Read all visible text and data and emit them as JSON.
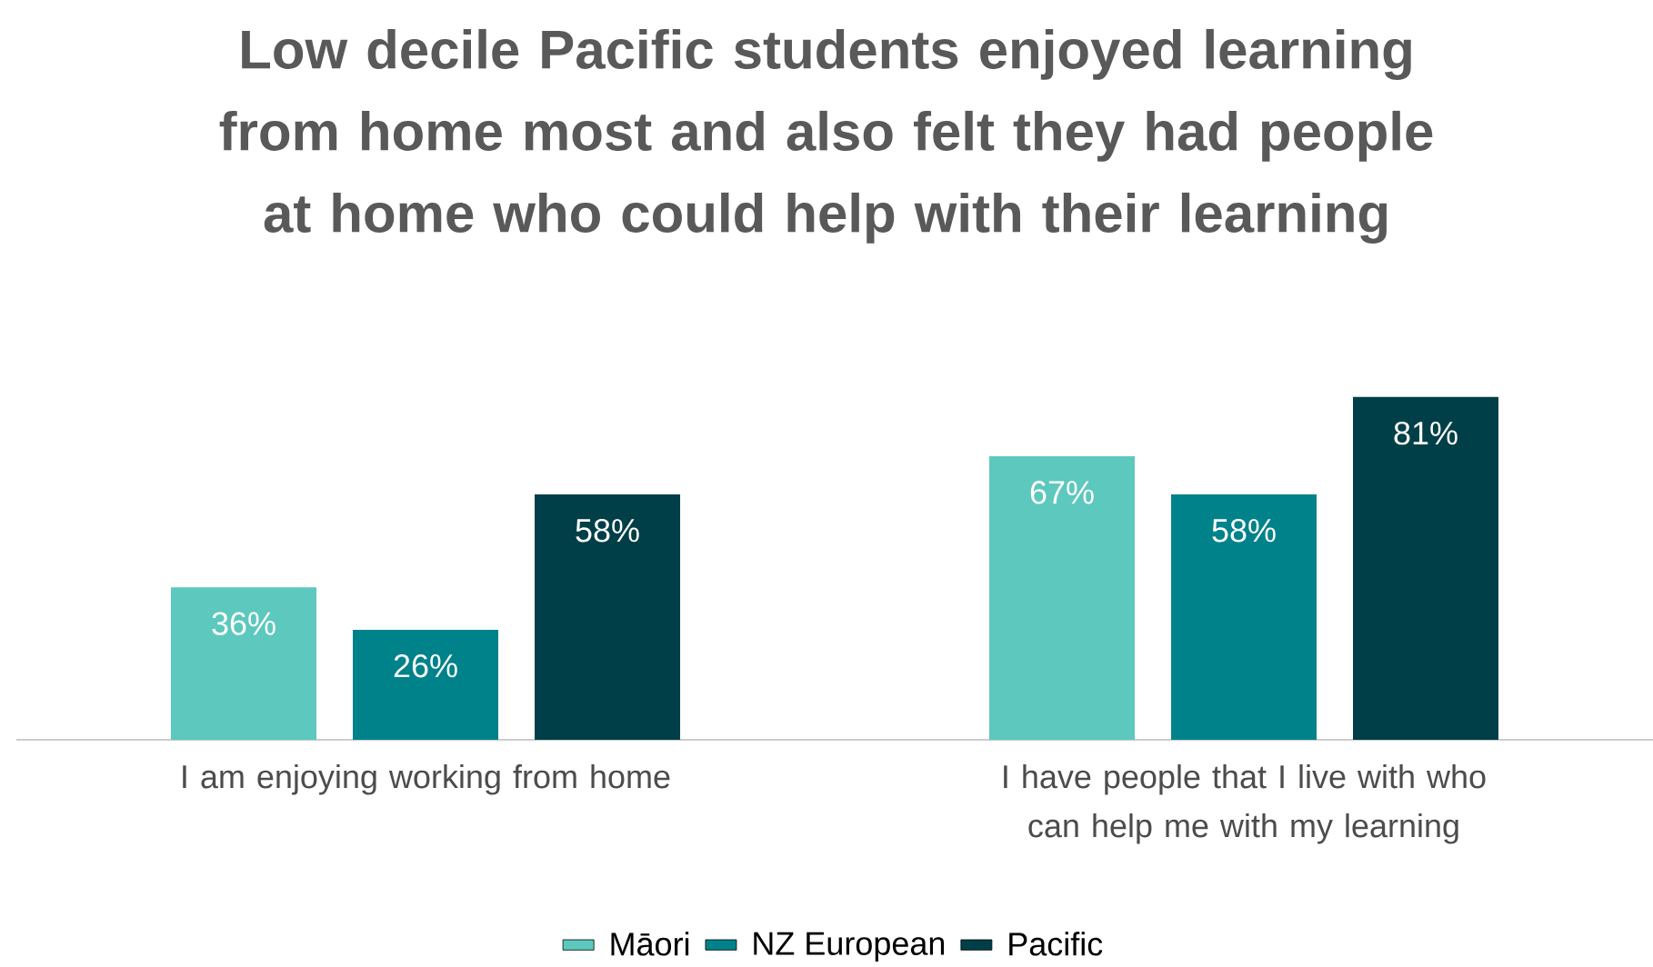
{
  "chart_data": {
    "type": "bar",
    "title": "Low decile Pacific students enjoyed learning from home most and also felt they had people at home who could help with their learning",
    "categories": [
      "I am enjoying working from home",
      "I have people that I live with who can help me with my learning"
    ],
    "series": [
      {
        "name": "Māori",
        "color": "#5dc8bd",
        "values": [
          36,
          67
        ],
        "value_labels": [
          "36%",
          "67%"
        ]
      },
      {
        "name": "NZ European",
        "color": "#00828a",
        "values": [
          26,
          58
        ],
        "value_labels": [
          "26%",
          "58%"
        ]
      },
      {
        "name": "Pacific",
        "color": "#003f47",
        "values": [
          58,
          81
        ],
        "value_labels": [
          "58%",
          "81%"
        ]
      }
    ],
    "legend": "bottom"
  }
}
